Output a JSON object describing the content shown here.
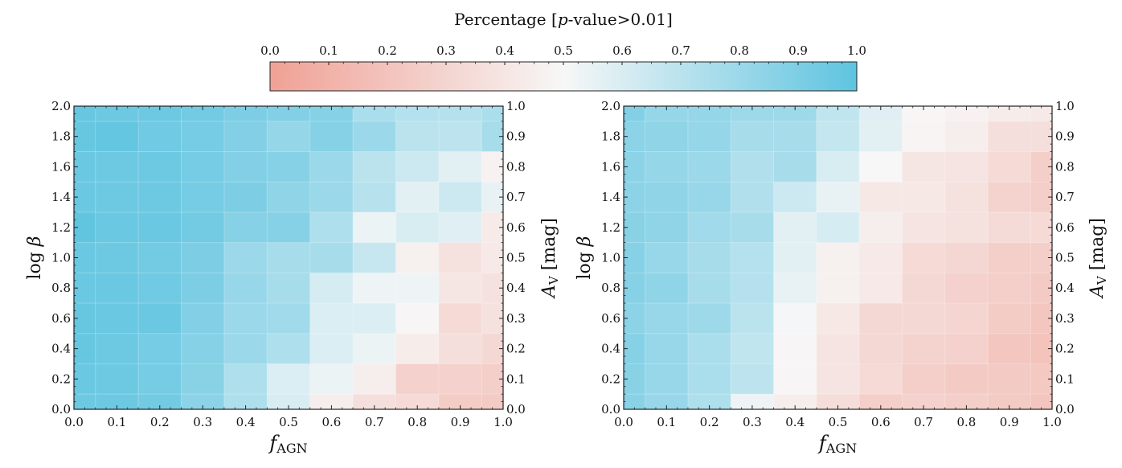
{
  "chart_data": {
    "type": "heatmap",
    "colorbar": {
      "title": "Percentage [p-value>0.01]",
      "title_parts": [
        "Percentage [",
        "p",
        "-value>0.01]"
      ],
      "range": [
        0.0,
        1.0
      ],
      "ticks": [
        "0.0",
        "0.1",
        "0.2",
        "0.3",
        "0.4",
        "0.5",
        "0.6",
        "0.7",
        "0.8",
        "0.9",
        "1.0"
      ],
      "colormap": [
        {
          "stop": 0.0,
          "color": "#f0a195"
        },
        {
          "stop": 0.5,
          "color": "#f7f7f7"
        },
        {
          "stop": 1.0,
          "color": "#5ec4e0"
        }
      ],
      "placement": "top-center"
    },
    "panels": [
      {
        "name": "left",
        "xlabel": "f_AGN",
        "xlabel_main": "f",
        "xlabel_sub": "AGN",
        "ylabel": "log β",
        "ylabel_right": "A_V [mag]",
        "ylabel_right_main": "A",
        "ylabel_right_sub": "V",
        "ylabel_right_unit": " [mag]",
        "x_ticks": [
          "0.0",
          "0.1",
          "0.2",
          "0.3",
          "0.4",
          "0.5",
          "0.6",
          "0.7",
          "0.8",
          "0.9",
          "1.0"
        ],
        "y_ticks": [
          "0.0",
          "0.2",
          "0.4",
          "0.6",
          "0.8",
          "1.0",
          "1.2",
          "1.4",
          "1.6",
          "1.8",
          "2.0"
        ],
        "y_right_ticks": [
          "0.0",
          "0.1",
          "0.2",
          "0.3",
          "0.4",
          "0.5",
          "0.6",
          "0.7",
          "0.8",
          "0.9",
          "1.0"
        ],
        "xlim": [
          0.0,
          1.0
        ],
        "ylim": [
          0.0,
          2.0
        ],
        "x": [
          0.0,
          0.1,
          0.2,
          0.3,
          0.4,
          0.5,
          0.6,
          0.7,
          0.8,
          0.9,
          1.0
        ],
        "y": [
          2.0,
          1.8,
          1.6,
          1.4,
          1.2,
          1.0,
          0.8,
          0.6,
          0.4,
          0.2,
          0.0
        ],
        "values": [
          [
            0.97,
            0.95,
            0.95,
            0.93,
            0.9,
            0.88,
            0.87,
            0.75,
            0.72,
            0.72,
            0.75
          ],
          [
            0.97,
            0.98,
            0.94,
            0.92,
            0.88,
            0.82,
            0.87,
            0.8,
            0.7,
            0.69,
            0.76
          ],
          [
            0.96,
            0.95,
            0.95,
            0.92,
            0.88,
            0.87,
            0.8,
            0.7,
            0.64,
            0.57,
            0.47
          ],
          [
            0.96,
            0.95,
            0.95,
            0.92,
            0.9,
            0.84,
            0.8,
            0.71,
            0.57,
            0.64,
            0.55
          ],
          [
            0.99,
            0.96,
            0.96,
            0.93,
            0.87,
            0.87,
            0.74,
            0.54,
            0.6,
            0.58,
            0.43
          ],
          [
            0.96,
            0.95,
            0.93,
            0.9,
            0.8,
            0.76,
            0.76,
            0.66,
            0.46,
            0.38,
            0.42
          ],
          [
            0.96,
            0.96,
            0.94,
            0.9,
            0.81,
            0.76,
            0.61,
            0.53,
            0.53,
            0.4,
            0.38
          ],
          [
            0.97,
            0.96,
            0.96,
            0.88,
            0.8,
            0.78,
            0.59,
            0.59,
            0.49,
            0.33,
            0.38
          ],
          [
            0.97,
            0.95,
            0.92,
            0.87,
            0.8,
            0.74,
            0.59,
            0.54,
            0.44,
            0.36,
            0.32
          ],
          [
            0.96,
            0.95,
            0.92,
            0.86,
            0.74,
            0.59,
            0.54,
            0.45,
            0.28,
            0.28,
            0.27
          ],
          [
            0.95,
            0.95,
            0.93,
            0.85,
            0.74,
            0.6,
            0.45,
            0.36,
            0.33,
            0.25,
            0.24
          ]
        ]
      },
      {
        "name": "right",
        "xlabel": "f_AGN",
        "xlabel_main": "f",
        "xlabel_sub": "AGN",
        "ylabel": "log β",
        "ylabel_right": "A_V [mag]",
        "ylabel_right_main": "A",
        "ylabel_right_sub": "V",
        "ylabel_right_unit": " [mag]",
        "x_ticks": [
          "0.0",
          "0.1",
          "0.2",
          "0.3",
          "0.4",
          "0.5",
          "0.6",
          "0.7",
          "0.8",
          "0.9",
          "1.0"
        ],
        "y_ticks": [
          "0.0",
          "0.2",
          "0.4",
          "0.6",
          "0.8",
          "1.0",
          "1.2",
          "1.4",
          "1.6",
          "1.8",
          "2.0"
        ],
        "y_right_ticks": [
          "0.0",
          "0.1",
          "0.2",
          "0.3",
          "0.4",
          "0.5",
          "0.6",
          "0.7",
          "0.8",
          "0.9",
          "1.0"
        ],
        "xlim": [
          0.0,
          1.0
        ],
        "ylim": [
          0.0,
          2.0
        ],
        "x": [
          0.0,
          0.1,
          0.2,
          0.3,
          0.4,
          0.5,
          0.6,
          0.7,
          0.8,
          0.9,
          1.0
        ],
        "y": [
          2.0,
          1.8,
          1.6,
          1.4,
          1.2,
          1.0,
          0.8,
          0.6,
          0.4,
          0.2,
          0.0
        ],
        "values": [
          [
            0.88,
            0.82,
            0.82,
            0.79,
            0.79,
            0.68,
            0.58,
            0.49,
            0.47,
            0.44,
            0.42
          ],
          [
            0.85,
            0.84,
            0.82,
            0.76,
            0.76,
            0.67,
            0.57,
            0.48,
            0.45,
            0.36,
            0.36
          ],
          [
            0.85,
            0.82,
            0.8,
            0.73,
            0.76,
            0.6,
            0.5,
            0.4,
            0.39,
            0.33,
            0.27
          ],
          [
            0.85,
            0.84,
            0.81,
            0.73,
            0.64,
            0.55,
            0.41,
            0.41,
            0.38,
            0.29,
            0.26
          ],
          [
            0.86,
            0.84,
            0.78,
            0.76,
            0.57,
            0.61,
            0.45,
            0.39,
            0.38,
            0.34,
            0.33
          ],
          [
            0.87,
            0.81,
            0.76,
            0.72,
            0.57,
            0.46,
            0.42,
            0.33,
            0.31,
            0.26,
            0.27
          ],
          [
            0.87,
            0.84,
            0.76,
            0.72,
            0.55,
            0.46,
            0.42,
            0.32,
            0.28,
            0.26,
            0.24
          ],
          [
            0.85,
            0.81,
            0.79,
            0.7,
            0.51,
            0.41,
            0.32,
            0.32,
            0.3,
            0.25,
            0.22
          ],
          [
            0.87,
            0.81,
            0.75,
            0.68,
            0.49,
            0.39,
            0.32,
            0.29,
            0.28,
            0.22,
            0.2
          ],
          [
            0.86,
            0.81,
            0.75,
            0.69,
            0.49,
            0.39,
            0.33,
            0.26,
            0.24,
            0.24,
            0.23
          ],
          [
            0.86,
            0.81,
            0.74,
            0.53,
            0.45,
            0.35,
            0.26,
            0.28,
            0.27,
            0.24,
            0.21
          ]
        ]
      }
    ]
  }
}
